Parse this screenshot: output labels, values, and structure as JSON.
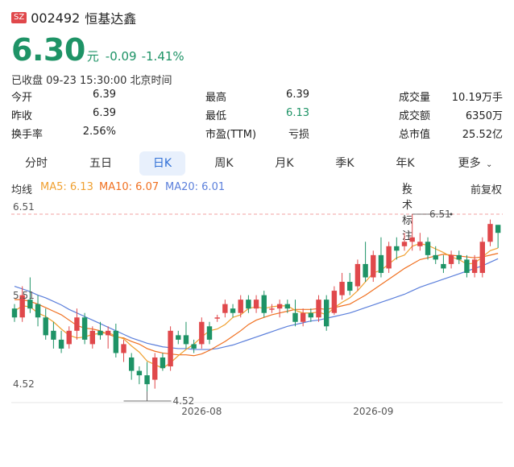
{
  "header": {
    "exchange": "SZ",
    "code": "002492",
    "name": "恒基达鑫"
  },
  "quote": {
    "price": "6.30",
    "unit": "元",
    "change": "-0.09",
    "change_pct": "-1.41%",
    "status": "已收盘 09-23 15:30:00 北京时间"
  },
  "stats": [
    {
      "label": "今开",
      "value": "6.39"
    },
    {
      "label": "最高",
      "value": "6.39"
    },
    {
      "label": "成交量",
      "value": "10.19万手"
    },
    {
      "label": "昨收",
      "value": "6.39"
    },
    {
      "label": "最低",
      "value": "6.13"
    },
    {
      "label": "成交额",
      "value": "6350万"
    },
    {
      "label": "换手率",
      "value": "2.56%"
    },
    {
      "label": "市盈(TTM)",
      "value": "亏损"
    },
    {
      "label": "总市值",
      "value": "25.52亿"
    }
  ],
  "tabs": [
    "分时",
    "五日",
    "日K",
    "周K",
    "月K",
    "季K",
    "年K",
    "更多"
  ],
  "active_tab": "日K",
  "ma": {
    "label": "均线",
    "ma5": "MA5: 6.13",
    "ma10": "MA10: 6.07",
    "ma20": "MA20: 6.01",
    "tech": "技术标注",
    "adjust": "前复权"
  },
  "colors": {
    "up": "#e0484b",
    "down": "#1e9366",
    "ma5": "#f0a030",
    "ma10": "#f07020",
    "ma20": "#5b7fdb"
  },
  "chart_data": {
    "type": "candlestick",
    "ylim": [
      4.52,
      6.51
    ],
    "y_ticks": [
      "6.51",
      "5.51",
      "4.52"
    ],
    "x_ticks": [
      "2026-08",
      "2026-09"
    ],
    "max_label": "6.51",
    "min_label": "4.52",
    "candles": [
      [
        5.45,
        5.5,
        5.3,
        5.35
      ],
      [
        5.35,
        5.7,
        5.3,
        5.6
      ],
      [
        5.55,
        5.8,
        5.4,
        5.45
      ],
      [
        5.5,
        5.6,
        5.25,
        5.35
      ],
      [
        5.35,
        5.45,
        5.1,
        5.15
      ],
      [
        5.2,
        5.3,
        5.0,
        5.1
      ],
      [
        5.1,
        5.2,
        4.95,
        5.0
      ],
      [
        5.05,
        5.25,
        5.0,
        5.2
      ],
      [
        5.2,
        5.45,
        5.1,
        5.35
      ],
      [
        5.35,
        5.4,
        5.05,
        5.1
      ],
      [
        5.05,
        5.25,
        5.0,
        5.2
      ],
      [
        5.2,
        5.3,
        5.1,
        5.15
      ],
      [
        5.15,
        5.25,
        5.0,
        5.2
      ],
      [
        5.2,
        5.28,
        4.9,
        4.95
      ],
      [
        4.95,
        5.1,
        4.85,
        5.05
      ],
      [
        4.9,
        4.95,
        4.65,
        4.75
      ],
      [
        4.75,
        4.8,
        4.6,
        4.7
      ],
      [
        4.7,
        4.85,
        4.52,
        4.6
      ],
      [
        4.65,
        4.95,
        4.55,
        4.9
      ],
      [
        4.9,
        4.95,
        4.75,
        4.78
      ],
      [
        4.8,
        5.25,
        4.75,
        5.2
      ],
      [
        5.15,
        5.2,
        5.05,
        5.1
      ],
      [
        5.15,
        5.3,
        5.0,
        5.05
      ],
      [
        5.05,
        5.1,
        4.95,
        5.0
      ],
      [
        5.05,
        5.35,
        5.0,
        5.3
      ],
      [
        5.25,
        5.3,
        5.05,
        5.1
      ],
      [
        5.35,
        5.38,
        5.3,
        5.35
      ],
      [
        5.4,
        5.55,
        5.35,
        5.5
      ],
      [
        5.45,
        5.5,
        5.35,
        5.4
      ],
      [
        5.4,
        5.6,
        5.35,
        5.55
      ],
      [
        5.55,
        5.6,
        5.4,
        5.45
      ],
      [
        5.45,
        5.6,
        5.4,
        5.55
      ],
      [
        5.6,
        5.65,
        5.35,
        5.4
      ],
      [
        5.45,
        5.5,
        5.4,
        5.45
      ],
      [
        5.45,
        5.55,
        5.35,
        5.5
      ],
      [
        5.5,
        5.55,
        5.4,
        5.45
      ],
      [
        5.4,
        5.55,
        5.25,
        5.3
      ],
      [
        5.3,
        5.45,
        5.25,
        5.4
      ],
      [
        5.4,
        5.45,
        5.3,
        5.35
      ],
      [
        5.35,
        5.6,
        5.3,
        5.55
      ],
      [
        5.55,
        5.6,
        5.2,
        5.25
      ],
      [
        5.4,
        5.7,
        5.38,
        5.65
      ],
      [
        5.6,
        5.85,
        5.55,
        5.75
      ],
      [
        5.75,
        5.85,
        5.6,
        5.65
      ],
      [
        5.7,
        6.0,
        5.65,
        5.95
      ],
      [
        5.95,
        6.2,
        5.75,
        5.8
      ],
      [
        5.8,
        6.1,
        5.75,
        6.05
      ],
      [
        6.05,
        6.25,
        5.8,
        5.85
      ],
      [
        5.9,
        6.2,
        5.85,
        6.15
      ],
      [
        6.15,
        6.25,
        6.0,
        6.1
      ],
      [
        6.15,
        6.3,
        6.1,
        6.2
      ],
      [
        6.2,
        6.51,
        6.1,
        6.25
      ],
      [
        6.15,
        6.3,
        6.1,
        6.2
      ],
      [
        6.2,
        6.25,
        6.0,
        6.05
      ],
      [
        6.05,
        6.15,
        5.95,
        6.0
      ],
      [
        5.95,
        6.05,
        5.85,
        5.9
      ],
      [
        5.95,
        6.1,
        5.9,
        6.05
      ],
      [
        6.05,
        6.1,
        5.95,
        6.0
      ],
      [
        6.0,
        6.05,
        5.8,
        5.85
      ],
      [
        5.85,
        6.05,
        5.8,
        6.0
      ],
      [
        5.85,
        6.25,
        5.8,
        6.2
      ],
      [
        6.2,
        6.45,
        6.15,
        6.4
      ],
      [
        6.39,
        6.39,
        6.13,
        6.3
      ]
    ],
    "ma5": [
      5.42,
      5.48,
      5.47,
      5.4,
      5.36,
      5.3,
      5.22,
      5.15,
      5.12,
      5.13,
      5.16,
      5.17,
      5.18,
      5.14,
      5.11,
      5.03,
      4.96,
      4.86,
      4.82,
      4.78,
      4.84,
      4.92,
      4.99,
      5.05,
      5.13,
      5.2,
      5.22,
      5.27,
      5.35,
      5.38,
      5.45,
      5.47,
      5.45,
      5.47,
      5.48,
      5.48,
      5.43,
      5.4,
      5.4,
      5.41,
      5.38,
      5.46,
      5.52,
      5.57,
      5.65,
      5.75,
      5.85,
      5.88,
      5.95,
      6.02,
      6.05,
      6.15,
      6.18,
      6.16,
      6.12,
      6.08,
      6.03,
      6.0,
      5.95,
      5.96,
      6.03,
      6.1,
      6.13
    ],
    "ma10": [
      5.55,
      5.55,
      5.53,
      5.5,
      5.46,
      5.42,
      5.38,
      5.32,
      5.26,
      5.23,
      5.22,
      5.2,
      5.16,
      5.13,
      5.12,
      5.08,
      5.05,
      5.0,
      4.97,
      4.95,
      4.94,
      4.93,
      4.93,
      4.92,
      4.94,
      4.98,
      5.03,
      5.08,
      5.14,
      5.2,
      5.27,
      5.32,
      5.35,
      5.38,
      5.4,
      5.42,
      5.44,
      5.44,
      5.44,
      5.45,
      5.44,
      5.46,
      5.48,
      5.5,
      5.55,
      5.6,
      5.66,
      5.72,
      5.78,
      5.84,
      5.9,
      5.95,
      6.0,
      6.02,
      6.04,
      6.06,
      6.05,
      6.04,
      6.03,
      6.02,
      6.03,
      6.05,
      6.07
    ],
    "ma20": [
      5.7,
      5.67,
      5.64,
      5.6,
      5.57,
      5.53,
      5.49,
      5.44,
      5.4,
      5.36,
      5.32,
      5.28,
      5.24,
      5.2,
      5.16,
      5.12,
      5.09,
      5.06,
      5.04,
      5.02,
      5.01,
      5.0,
      5.0,
      4.99,
      4.99,
      4.99,
      5.0,
      5.02,
      5.04,
      5.07,
      5.1,
      5.13,
      5.16,
      5.19,
      5.22,
      5.25,
      5.27,
      5.29,
      5.31,
      5.32,
      5.34,
      5.36,
      5.38,
      5.4,
      5.43,
      5.46,
      5.49,
      5.52,
      5.55,
      5.58,
      5.61,
      5.65,
      5.69,
      5.72,
      5.75,
      5.78,
      5.81,
      5.84,
      5.87,
      5.9,
      5.93,
      5.97,
      6.01
    ]
  }
}
